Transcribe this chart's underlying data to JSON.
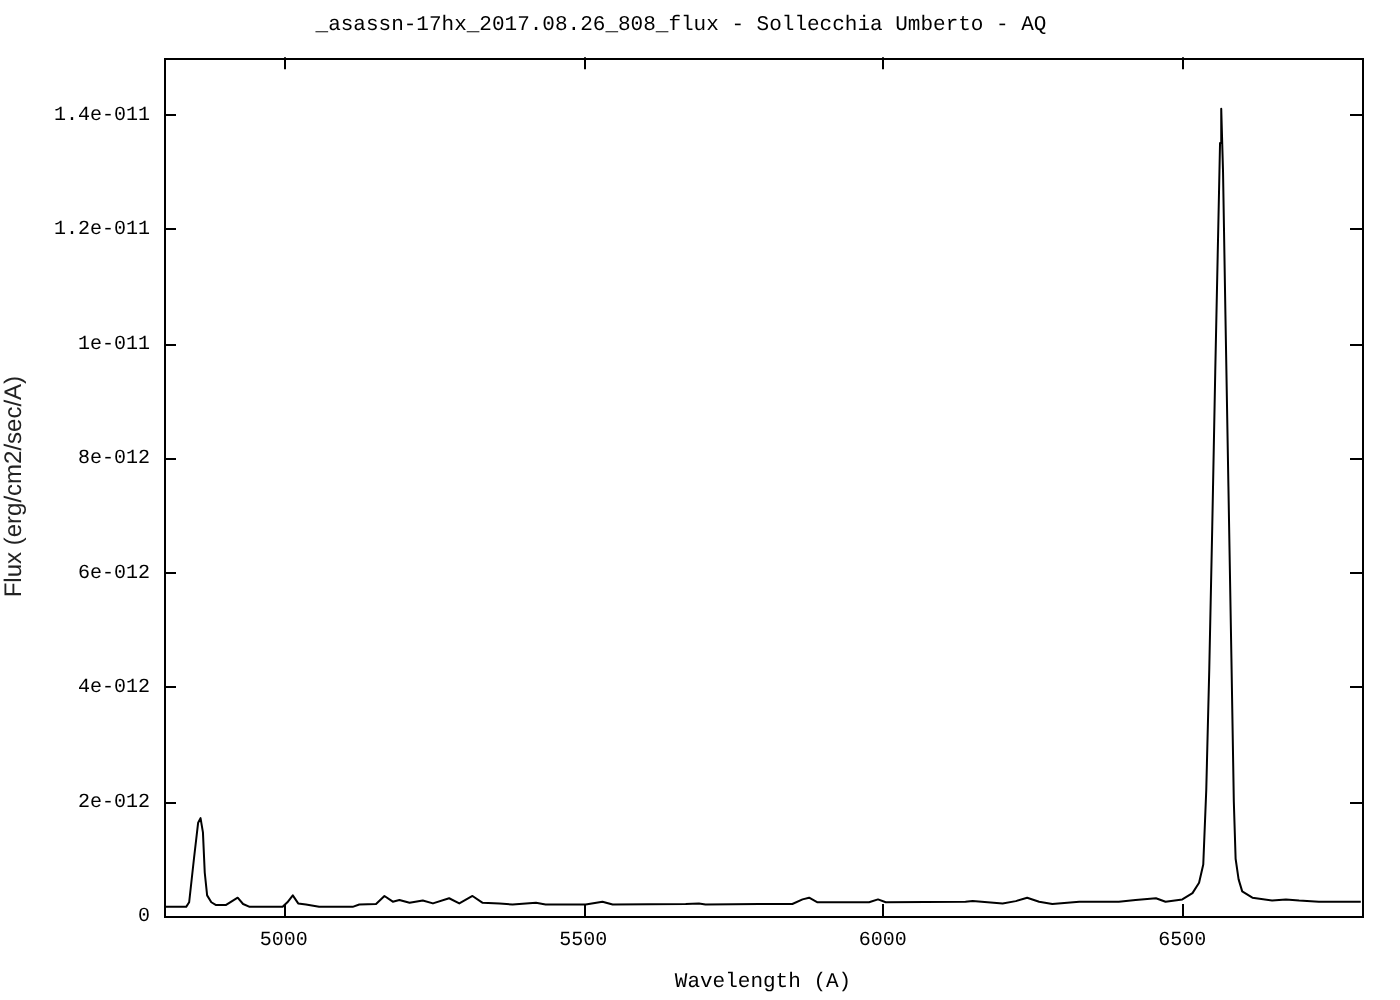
{
  "chart_data": {
    "type": "line",
    "title": "_asassn-17hx_2017.08.26_808_flux - Sollecchia Umberto - AQ",
    "xlabel": "Wavelength (A)",
    "ylabel": "Flux (erg/cm2/sec/A)",
    "x": [
      4800,
      4837,
      4842,
      4850,
      4857,
      4861,
      4865,
      4868,
      4872,
      4879,
      4887,
      4903,
      4915,
      4923,
      4932,
      4943,
      4998,
      5006,
      5015,
      5024,
      5037,
      5059,
      5115,
      5126,
      5154,
      5168,
      5182,
      5193,
      5210,
      5232,
      5249,
      5276,
      5293,
      5315,
      5332,
      5360,
      5382,
      5421,
      5437,
      5504,
      5532,
      5549,
      5671,
      5693,
      5704,
      5794,
      5849,
      5866,
      5877,
      5891,
      5977,
      5992,
      6005,
      6138,
      6150,
      6200,
      6222,
      6241,
      6261,
      6283,
      6328,
      6394,
      6422,
      6456,
      6472,
      6500,
      6517,
      6528,
      6535,
      6540,
      6545,
      6550,
      6555,
      6560,
      6563,
      6565,
      6568,
      6572,
      6577,
      6582,
      6586,
      6589,
      6594,
      6600,
      6617,
      6650,
      6673,
      6695,
      6728,
      6798
    ],
    "values": [
      1.6e-13,
      1.6e-13,
      2.4e-13,
      1e-12,
      1.63e-12,
      1.71e-12,
      1.46e-12,
      7.6e-13,
      3.6e-13,
      2.4e-13,
      1.9e-13,
      1.9e-13,
      2.7e-13,
      3.2e-13,
      2.1e-13,
      1.6e-13,
      1.6e-13,
      2.4e-13,
      3.6e-13,
      2.2e-13,
      2e-13,
      1.6e-13,
      1.6e-13,
      2e-13,
      2.1e-13,
      3.5e-13,
      2.5e-13,
      2.8e-13,
      2.3e-13,
      2.7e-13,
      2.2e-13,
      3.1e-13,
      2.2e-13,
      3.5e-13,
      2.3e-13,
      2.2e-13,
      2e-13,
      2.3e-13,
      2e-13,
      2e-13,
      2.5e-13,
      2e-13,
      2.1e-13,
      2.2e-13,
      2e-13,
      2.1e-13,
      2.1e-13,
      2.9e-13,
      3.2e-13,
      2.4e-13,
      2.4e-13,
      2.9e-13,
      2.4e-13,
      2.5e-13,
      2.6e-13,
      2.2e-13,
      2.6e-13,
      3.2e-13,
      2.5e-13,
      2.1e-13,
      2.5e-13,
      2.5e-13,
      2.8e-13,
      3.1e-13,
      2.5e-13,
      2.9e-13,
      4e-13,
      5.8e-13,
      9e-13,
      2.2e-12,
      4.3e-12,
      6.8e-12,
      9.5e-12,
      1.2e-11,
      1.35e-11,
      1.41e-11,
      1.3e-11,
      1.05e-11,
      7.5e-12,
      4.5e-12,
      2e-12,
      1e-12,
      6.4e-13,
      4.3e-13,
      3.2e-13,
      2.7e-13,
      2.9e-13,
      2.7e-13,
      2.5e-13,
      2.5e-13
    ],
    "color": "#000000",
    "xlim": [
      4800,
      6800
    ],
    "xticks": [
      5000,
      5500,
      6000,
      6500
    ],
    "ylim": [
      0,
      1.5e-11
    ],
    "yticks": [
      0,
      {
        "value": 2e-12,
        "label": "2e-012"
      },
      {
        "value": 4e-12,
        "label": "4e-012"
      },
      {
        "value": 6e-12,
        "label": "6e-012"
      },
      {
        "value": 8e-12,
        "label": "8e-012"
      },
      {
        "value": 1e-11,
        "label": "1e-011"
      },
      {
        "value": 1.2e-11,
        "label": "1.2e-011"
      },
      {
        "value": 1.4e-11,
        "label": "1.4e-011"
      }
    ]
  }
}
